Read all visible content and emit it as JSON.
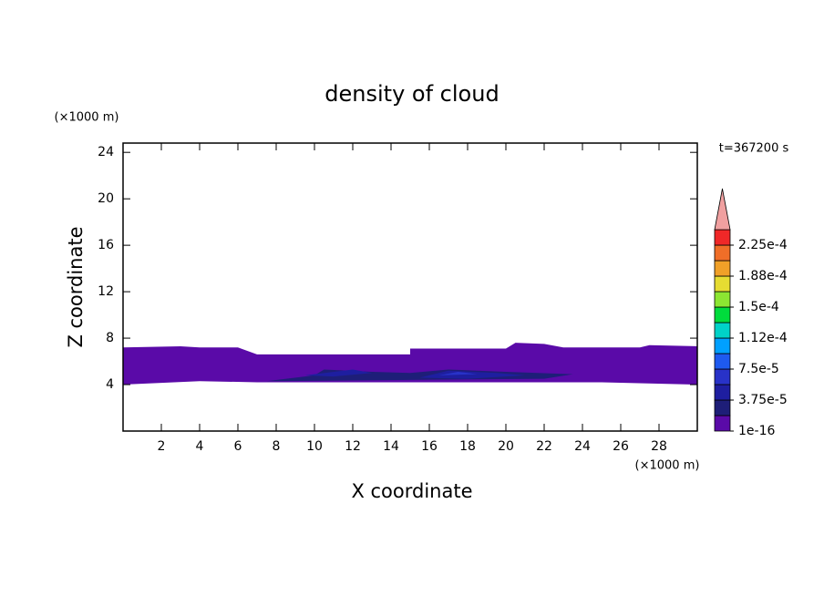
{
  "chart_data": {
    "type": "contour",
    "title": "density of cloud",
    "xlabel": "X coordinate",
    "ylabel": "Z coordinate",
    "xunit": "(×1000 m)",
    "yunit": "(×1000 m)",
    "time_label": "t=367200 s",
    "xlim": [
      0,
      30
    ],
    "ylim": [
      0,
      24.8
    ],
    "xticks": [
      2,
      4,
      6,
      8,
      10,
      12,
      14,
      16,
      18,
      20,
      22,
      24,
      26,
      28
    ],
    "yticks": [
      4,
      8,
      12,
      16,
      20,
      24
    ],
    "colorbar": {
      "clim": [
        1e-16,
        0.00024375
      ],
      "colors": [
        "#5a0aa8",
        "#1e1e78",
        "#1e1ea0",
        "#2832c8",
        "#1e5af0",
        "#00a0ff",
        "#00d2c8",
        "#00dc3c",
        "#8ce632",
        "#e6dc32",
        "#f0a028",
        "#f06e28",
        "#f02828"
      ],
      "extend_color": "#f0a0a0",
      "ticks": [
        {
          "value": 1e-16,
          "label": "1e-16"
        },
        {
          "value": 3.75e-05,
          "label": "3.75e-5"
        },
        {
          "value": 7.5e-05,
          "label": "7.5e-5"
        },
        {
          "value": 0.0001125,
          "label": "1.12e-4"
        },
        {
          "value": 0.00015,
          "label": "1.5e-4"
        },
        {
          "value": 0.0001875,
          "label": "1.88e-4"
        },
        {
          "value": 0.000225,
          "label": "2.25e-4"
        }
      ]
    },
    "regions": [
      {
        "level": 1e-16,
        "x": [
          0,
          3,
          4,
          6,
          7,
          10,
          15,
          15,
          20,
          20.5,
          22,
          23,
          27,
          27.5,
          30,
          30,
          25,
          20,
          7,
          4,
          0
        ],
        "y": [
          7.2,
          7.3,
          7.2,
          7.2,
          6.6,
          6.6,
          6.6,
          7.1,
          7.1,
          7.6,
          7.5,
          7.2,
          7.2,
          7.4,
          7.3,
          4.0,
          4.2,
          4.2,
          4.2,
          4.3,
          4.0
        ]
      },
      {
        "level": 1.875e-05,
        "x": [
          7.5,
          10,
          10.5,
          13,
          15,
          17,
          20,
          23.5,
          22,
          15,
          8
        ],
        "y": [
          4.3,
          4.8,
          5.3,
          5.1,
          5.0,
          5.3,
          5.1,
          4.9,
          4.5,
          4.4,
          4.3
        ]
      },
      {
        "level": 3.75e-05,
        "x": [
          9.5,
          12,
          13,
          11
        ],
        "y": [
          4.8,
          5.3,
          5.0,
          4.7
        ]
      },
      {
        "level": 3.75e-05,
        "x": [
          15.5,
          17,
          19.5,
          21,
          18
        ],
        "y": [
          4.6,
          5.2,
          5.0,
          4.8,
          4.5
        ]
      },
      {
        "level": 5.625e-05,
        "x": [
          16.5,
          17.5,
          18.5
        ],
        "y": [
          4.8,
          5.1,
          4.9
        ]
      }
    ]
  }
}
